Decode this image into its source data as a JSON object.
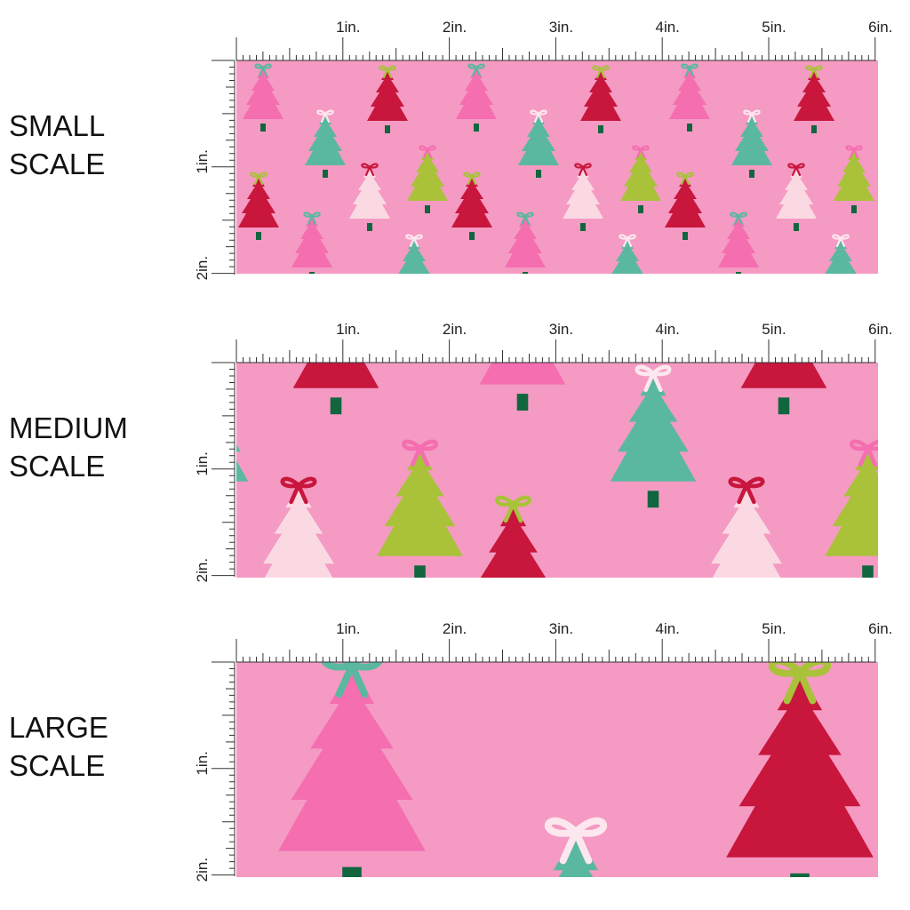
{
  "panels": [
    {
      "title_lines": [
        "SMALL",
        "SCALE"
      ],
      "ruler_top": [
        "1in.",
        "2in.",
        "3in.",
        "4in.",
        "5in.",
        "6in."
      ],
      "ruler_side": [
        "1in.",
        "2in."
      ]
    },
    {
      "title_lines": [
        "MEDIUM",
        "SCALE"
      ],
      "ruler_top": [
        "1in.",
        "2in.",
        "3in.",
        "4in.",
        "5in.",
        "6in."
      ],
      "ruler_side": [
        "1in.",
        "2in."
      ]
    },
    {
      "title_lines": [
        "LARGE",
        "SCALE"
      ],
      "ruler_top": [
        "1in.",
        "2in.",
        "3in.",
        "4in.",
        "5in.",
        "6in."
      ],
      "ruler_side": [
        "1in.",
        "2in."
      ]
    }
  ]
}
